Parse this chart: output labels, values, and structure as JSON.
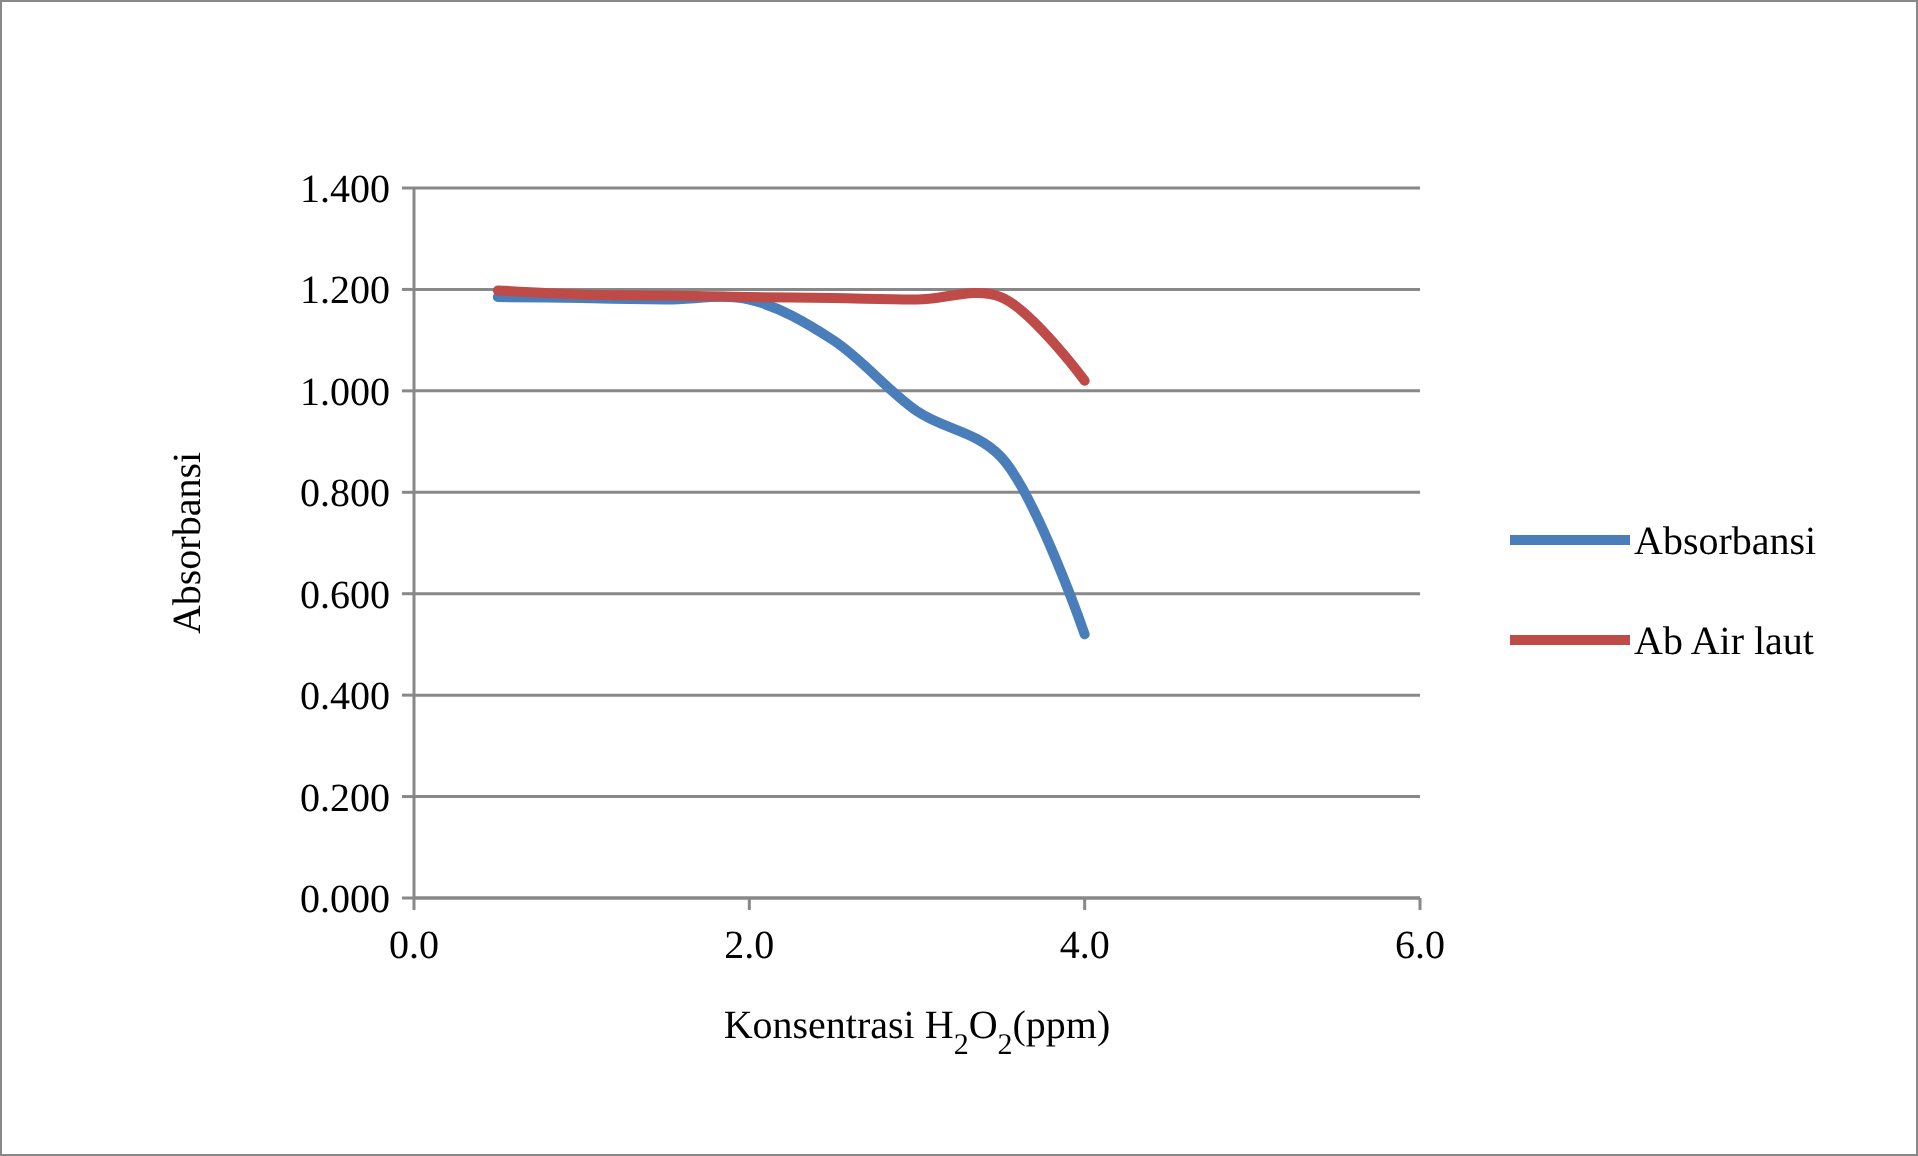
{
  "chart_data": {
    "type": "line",
    "xlabel": "Konsentrasi H$_{2}$O$_{2}$(ppm)",
    "ylabel": "Absorbansi",
    "xlim": [
      0,
      6
    ],
    "xticks": [
      {
        "value": 0,
        "label": "0.0"
      },
      {
        "value": 2,
        "label": "2.0"
      },
      {
        "value": 4,
        "label": "4.0"
      },
      {
        "value": 6,
        "label": "6.0"
      }
    ],
    "ylim": [
      0,
      1.4
    ],
    "yticks": [
      {
        "value": 0,
        "label": "0.000"
      },
      {
        "value": 0.2,
        "label": "0.200"
      },
      {
        "value": 0.4,
        "label": "0.400"
      },
      {
        "value": 0.6,
        "label": "0.600"
      },
      {
        "value": 0.8,
        "label": "0.800"
      },
      {
        "value": 1,
        "label": "1.000"
      },
      {
        "value": 1.2,
        "label": "1.200"
      },
      {
        "value": 1.4,
        "label": "1.400"
      }
    ],
    "x": [
      0.5,
      1,
      1.5,
      2,
      2.5,
      3,
      3.5,
      4
    ],
    "series": [
      {
        "name": "Absorbansi",
        "color": "#4a7ebb",
        "values": [
          1.185,
          1.183,
          1.18,
          1.18,
          1.1,
          0.96,
          0.87,
          0.52
        ]
      },
      {
        "name": "Ab Air laut",
        "color": "#be4b48",
        "values": [
          1.198,
          1.19,
          1.188,
          1.185,
          1.183,
          1.18,
          1.185,
          1.02
        ]
      }
    ],
    "grid": "y",
    "legend": "right",
    "marker": "none",
    "line_style": "solid"
  }
}
